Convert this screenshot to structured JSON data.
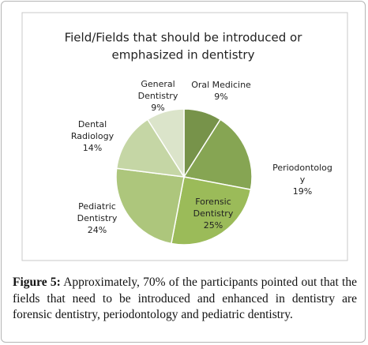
{
  "chart_data": {
    "type": "pie",
    "title": [
      "Field/Fields that should be introduced or",
      "emphasized in dentistry"
    ],
    "categories": [
      [
        "Oral Medicine"
      ],
      [
        "Periodontolog",
        "y"
      ],
      [
        "Forensic",
        "Dentistry"
      ],
      [
        "Pediatric",
        "Dentistry"
      ],
      [
        "Dental",
        "Radiology"
      ],
      [
        "General",
        "Dentistry"
      ]
    ],
    "values": [
      9,
      19,
      25,
      24,
      14,
      9
    ],
    "value_labels": [
      "9%",
      "19%",
      "25%",
      "24%",
      "14%",
      "9%"
    ],
    "colors": [
      "#77934a",
      "#86a553",
      "#9bbb59",
      "#adc67c",
      "#c5d6a5",
      "#dbe4ca"
    ]
  },
  "caption": {
    "label": "Figure 5:",
    "text": "Approximately, 70% of the participants pointed out that the fields that need to be introduced and enhanced in dentistry are forensic dentistry, periodontology and pediatric dentistry."
  }
}
